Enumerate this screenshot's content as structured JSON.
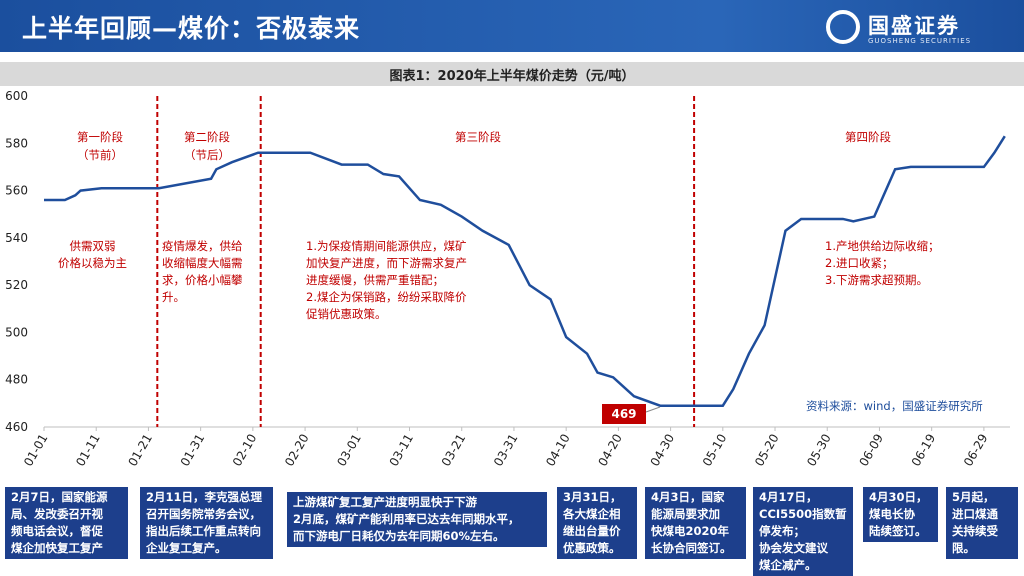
{
  "header": {
    "title": "上半年回顾—煤价：否极泰来",
    "logo": "国盛证券",
    "logo_subtitle": "GUOSHENG SECURITIES"
  },
  "chart_data": {
    "type": "line",
    "title": "图表1：2020年上半年煤价走势（元/吨）",
    "x": [
      0,
      4,
      6,
      7,
      11,
      21,
      22,
      32,
      33,
      36,
      41,
      51,
      57,
      62,
      65,
      68,
      72,
      76,
      80,
      84,
      89,
      93,
      97,
      100,
      104,
      106,
      109,
      113,
      118,
      130,
      132,
      135,
      138,
      142,
      145,
      153,
      155,
      159,
      163,
      166,
      180,
      182,
      184
    ],
    "values": [
      556,
      556,
      558,
      560,
      561,
      561,
      561,
      565,
      569,
      572,
      576,
      576,
      571,
      571,
      567,
      566,
      556,
      554,
      549,
      543,
      537,
      520,
      514,
      498,
      491,
      483,
      481,
      473,
      469,
      469,
      476,
      491,
      503,
      543,
      548,
      548,
      547,
      549,
      569,
      570,
      570,
      576,
      583
    ],
    "color": "#1f4e9c",
    "xlim": [
      0,
      185
    ],
    "xticks": [
      {
        "value": 0,
        "label": "01-01"
      },
      {
        "value": 10,
        "label": "01-11"
      },
      {
        "value": 20,
        "label": "01-21"
      },
      {
        "value": 30,
        "label": "01-31"
      },
      {
        "value": 40,
        "label": "02-10"
      },
      {
        "value": 50,
        "label": "02-20"
      },
      {
        "value": 60,
        "label": "03-01"
      },
      {
        "value": 70,
        "label": "03-11"
      },
      {
        "value": 80,
        "label": "03-21"
      },
      {
        "value": 90,
        "label": "03-31"
      },
      {
        "value": 100,
        "label": "04-10"
      },
      {
        "value": 110,
        "label": "04-20"
      },
      {
        "value": 120,
        "label": "04-30"
      },
      {
        "value": 130,
        "label": "05-10"
      },
      {
        "value": 140,
        "label": "05-20"
      },
      {
        "value": 150,
        "label": "05-30"
      },
      {
        "value": 160,
        "label": "06-09"
      },
      {
        "value": 170,
        "label": "06-19"
      },
      {
        "value": 180,
        "label": "06-29"
      }
    ],
    "ylim": [
      460,
      600
    ],
    "yticks": [
      460,
      480,
      500,
      520,
      540,
      560,
      580,
      600
    ],
    "grid": false,
    "dividers": [
      21.7,
      41.5,
      124.5
    ],
    "divider_color": "#c00000",
    "phases": [
      {
        "label": "第一阶段",
        "sub": "（节前）"
      },
      {
        "label": "第二阶段",
        "sub": "（节后）"
      },
      {
        "label": "第三阶段"
      },
      {
        "label": "第四阶段"
      }
    ],
    "annotations": [
      {
        "lines": [
          "供需双弱",
          "价格以稳为主"
        ]
      },
      {
        "lines": [
          "疫情爆发，供给",
          "收缩幅度大幅需",
          "求，价格小幅攀",
          "升。"
        ]
      },
      {
        "lines": [
          "1.为保疫情期间能源供应，煤矿",
          "加快复产进度，而下游需求复产",
          "进度缓慢，供需严重错配；",
          "2.煤企为保销路，纷纷采取降价",
          "促销优惠政策。"
        ]
      },
      {
        "lines": [
          "1.产地供给边际收缩；",
          "2.进口收紧；",
          "3.下游需求超预期。"
        ]
      }
    ],
    "callout_value": 469,
    "source": "资料来源：wind，国盛证券研究所"
  },
  "notes": [
    {
      "lines": [
        "2月7日，国家能源",
        "局、发改委召开视",
        "频电话会议，督促",
        "煤企加快复工复产"
      ]
    },
    {
      "lines": [
        "2月11日，李克强总理",
        "召开国务院常务会议，",
        "指出后续工作重点转向",
        "企业复工复产。"
      ]
    },
    {
      "lines": [
        "上游煤矿复工复产进度明显快于下游",
        "2月底，煤矿产能利用率已达去年同期水平，",
        "而下游电厂日耗仅为去年同期60%左右。"
      ]
    },
    {
      "lines": [
        "3月31日，",
        "各大煤企相",
        "继出台量价",
        "优惠政策。"
      ]
    },
    {
      "lines": [
        "4月3日，国家",
        "能源局要求加",
        "快煤电2020年",
        "长协合同签订。"
      ]
    },
    {
      "lines": [
        "4月17日，",
        "CCI5500指数暂",
        "停发布；",
        "协会发文建议",
        "煤企减产。"
      ]
    },
    {
      "lines": [
        "4月30日，",
        "煤电长协",
        "陆续签订。"
      ]
    },
    {
      "lines": [
        "5月起，",
        "进口煤通",
        "关持续受",
        "限。"
      ]
    }
  ]
}
